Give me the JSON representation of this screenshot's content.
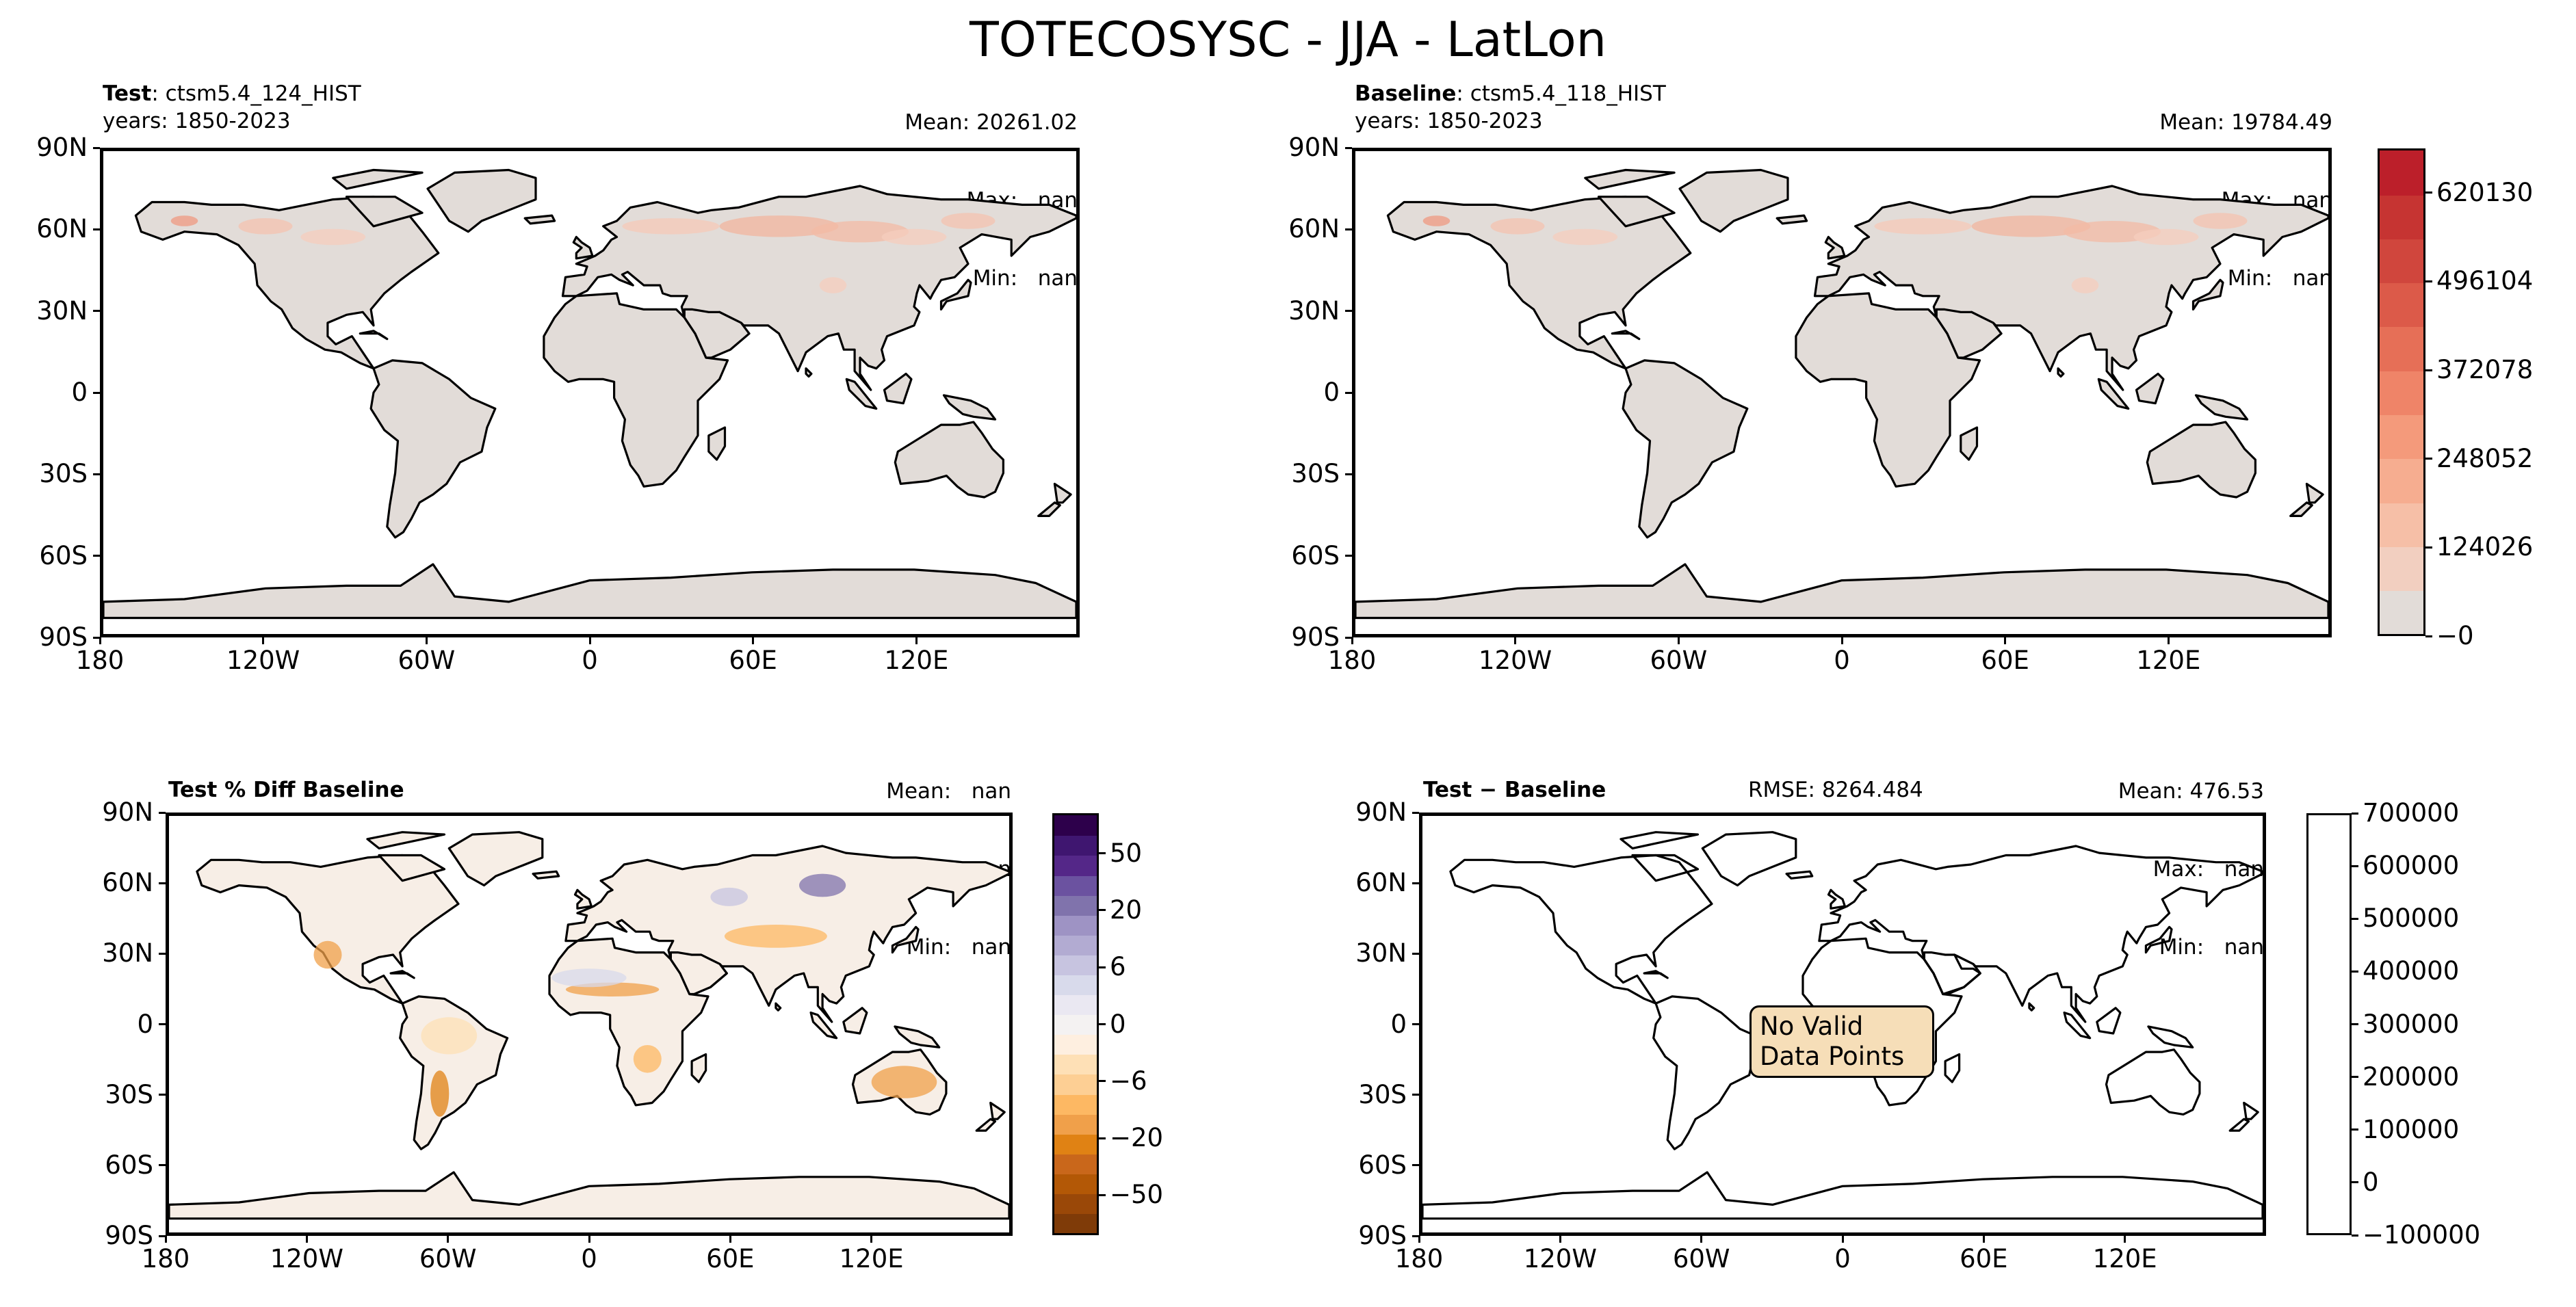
{
  "title": "TOTECOSYSC - JJA - LatLon",
  "colors": {
    "land_base": "#e2dcd8",
    "accent_red": "#c1222c",
    "diff_orange": "#c9671b",
    "diff_purple": "#5b3fa0",
    "no_data_fill": "#f6deb8"
  },
  "chart_data": [
    {
      "type": "heatmap",
      "panel": "test",
      "header_label": "Test",
      "case": "ctsm5.4_124_HIST",
      "years": "years: 1850-2023",
      "stats": {
        "mean": "Mean: 20261.02",
        "max": "Max:   nan",
        "min": "Min:   nan"
      },
      "xticks": [
        "180",
        "120W",
        "60W",
        "0",
        "60E",
        "120E"
      ],
      "yticks": [
        "90N",
        "60N",
        "30N",
        "0",
        "30S",
        "60S",
        "90S"
      ],
      "xlim": [
        -180,
        180
      ],
      "ylim": [
        -90,
        90
      ],
      "colormap": "Reds"
    },
    {
      "type": "heatmap",
      "panel": "baseline",
      "header_label": "Baseline",
      "case": "ctsm5.4_118_HIST",
      "years": "years: 1850-2023",
      "stats": {
        "mean": "Mean: 19784.49",
        "max": "Max:   nan",
        "min": "Min:   nan"
      },
      "xticks": [
        "180",
        "120W",
        "60W",
        "0",
        "60E",
        "120E"
      ],
      "yticks": [
        "90N",
        "60N",
        "30N",
        "0",
        "30S",
        "60S",
        "90S"
      ],
      "xlim": [
        -180,
        180
      ],
      "ylim": [
        -90,
        90
      ],
      "colorbar": {
        "ticks": [
          "620130",
          "496104",
          "372078",
          "248052",
          "124026",
          "−0"
        ],
        "tick_values": [
          620130,
          496104,
          372078,
          248052,
          124026,
          0
        ],
        "range": [
          0,
          682143
        ],
        "levels": 11,
        "colors": [
          "#e2dcd8",
          "#f2cfc0",
          "#f6bfa7",
          "#f6ad90",
          "#f49a7b",
          "#ef8468",
          "#e66f57",
          "#dc5a49",
          "#d0463d",
          "#c63432",
          "#bc1f2a"
        ]
      }
    },
    {
      "type": "heatmap",
      "panel": "percent_diff",
      "header_label": "Test % Diff Baseline",
      "stats": {
        "mean": "Mean:   nan",
        "max": "Max:   nan",
        "min": "Min:   nan"
      },
      "xticks": [
        "180",
        "120W",
        "60W",
        "0",
        "60E",
        "120E"
      ],
      "yticks": [
        "90N",
        "60N",
        "30N",
        "0",
        "30S",
        "60S",
        "90S"
      ],
      "xlim": [
        -180,
        180
      ],
      "ylim": [
        -90,
        90
      ],
      "colorbar": {
        "ticks": [
          "50",
          "20",
          "6",
          "0",
          "−6",
          "−20",
          "−50"
        ],
        "colors": [
          "#7f3b08",
          "#9a4808",
          "#b35806",
          "#c9671b",
          "#e08214",
          "#f0a04a",
          "#fdb863",
          "#fdcf94",
          "#fee0b6",
          "#feefe0",
          "#f4f2f2",
          "#eae8f2",
          "#d8daeb",
          "#c7c4e0",
          "#b2abd2",
          "#9e93c4",
          "#8073ac",
          "#6b52a0",
          "#542788",
          "#3f1670",
          "#2d004b"
        ]
      }
    },
    {
      "type": "heatmap",
      "panel": "difference",
      "header_label": "Test − Baseline",
      "rmse": "RMSE: 8264.484",
      "stats": {
        "mean": "Mean: 476.53",
        "max": "Max:   nan",
        "min": "Min:   nan"
      },
      "xticks": [
        "180",
        "120W",
        "60W",
        "0",
        "60E",
        "120E"
      ],
      "yticks": [
        "90N",
        "60N",
        "30N",
        "0",
        "30S",
        "60S",
        "90S"
      ],
      "xlim": [
        -180,
        180
      ],
      "ylim": [
        -90,
        90
      ],
      "annotation": [
        "No Valid",
        "Data Points"
      ],
      "colorbar": {
        "ticks": [
          "700000",
          "600000",
          "500000",
          "400000",
          "300000",
          "200000",
          "100000",
          "0",
          "−100000"
        ],
        "tick_values": [
          700000,
          600000,
          500000,
          400000,
          300000,
          200000,
          100000,
          0,
          -100000
        ],
        "range": [
          -100000,
          700000
        ]
      }
    }
  ]
}
